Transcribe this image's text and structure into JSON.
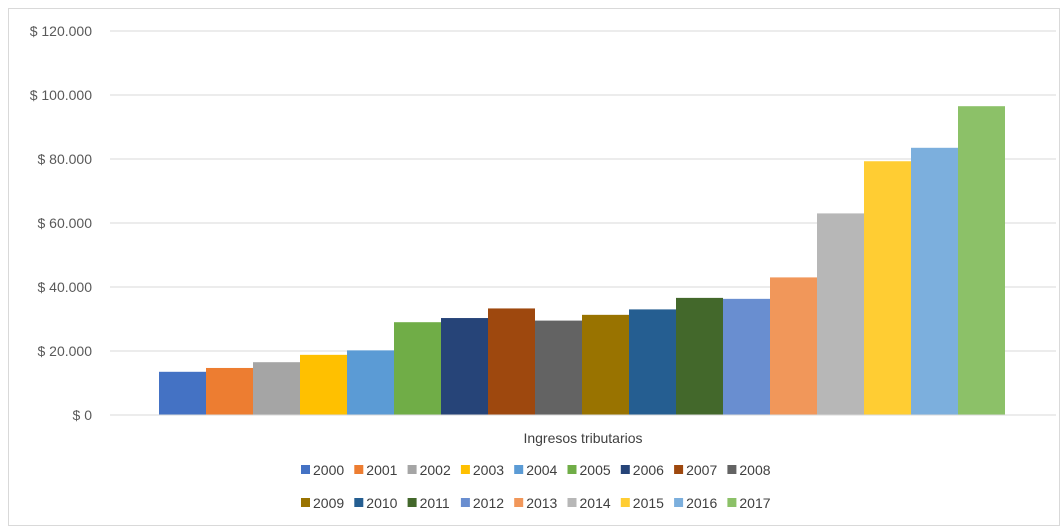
{
  "chart_data": {
    "type": "bar",
    "category": "Ingresos tributarios",
    "y_ticks": [
      "$ 0",
      "$ 20.000",
      "$ 40.000",
      "$ 60.000",
      "$ 80.000",
      "$ 100.000",
      "$ 120.000"
    ],
    "ylim": [
      0,
      120000
    ],
    "grid": true,
    "legend_position": "bottom",
    "series": [
      {
        "name": "2000",
        "value": 13500,
        "color": "#4472c4"
      },
      {
        "name": "2001",
        "value": 14700,
        "color": "#ed7d31"
      },
      {
        "name": "2002",
        "value": 16500,
        "color": "#a5a5a5"
      },
      {
        "name": "2003",
        "value": 18800,
        "color": "#ffc000"
      },
      {
        "name": "2004",
        "value": 20200,
        "color": "#5b9bd5"
      },
      {
        "name": "2005",
        "value": 29000,
        "color": "#70ad47"
      },
      {
        "name": "2006",
        "value": 30300,
        "color": "#264478"
      },
      {
        "name": "2007",
        "value": 33300,
        "color": "#9e480e"
      },
      {
        "name": "2008",
        "value": 29500,
        "color": "#636363"
      },
      {
        "name": "2009",
        "value": 31300,
        "color": "#997300"
      },
      {
        "name": "2010",
        "value": 33000,
        "color": "#255e91"
      },
      {
        "name": "2011",
        "value": 36600,
        "color": "#43682b"
      },
      {
        "name": "2012",
        "value": 36300,
        "color": "#698ed0"
      },
      {
        "name": "2013",
        "value": 43000,
        "color": "#f1975a"
      },
      {
        "name": "2014",
        "value": 63000,
        "color": "#b7b7b7"
      },
      {
        "name": "2015",
        "value": 79300,
        "color": "#ffcd33"
      },
      {
        "name": "2016",
        "value": 83500,
        "color": "#7cafdd"
      },
      {
        "name": "2017",
        "value": 96500,
        "color": "#8cc168"
      }
    ]
  }
}
